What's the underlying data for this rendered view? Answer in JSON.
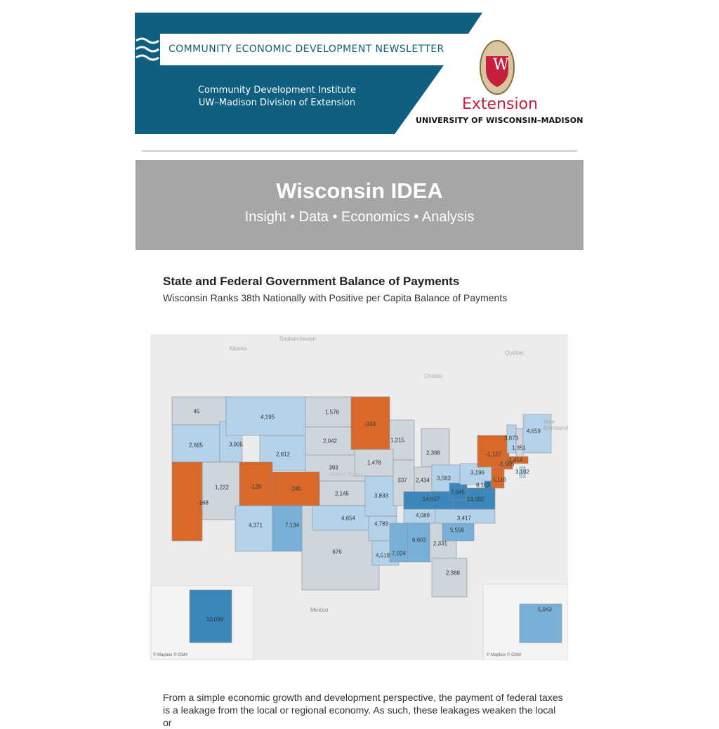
{
  "banner": {
    "newsletter": "COMMUNITY ECONOMIC DEVELOPMENT NEWSLETTER",
    "institute": "Community Development Institute",
    "division": "UW–Madison Division of Extension",
    "extension": "Extension",
    "university": "UNIVERSITY OF WISCONSIN–MADISON",
    "logo_letter": "W",
    "brand_color": "#0e5f80",
    "red": "#c5203e"
  },
  "hero": {
    "title": "Wisconsin IDEA",
    "tagline": "Insight • Data • Economics • Analysis"
  },
  "article": {
    "title": "State and Federal Government Balance of Payments",
    "subtitle": "Wisconsin Ranks 38th Nationally with Positive per Capita Balance of Payments",
    "paragraph": "From a simple economic growth and development perspective, the payment of federal taxes is a leakage from the local or regional economy. As such, these leakages weaken the local or"
  },
  "map": {
    "geo_labels": [
      "Alberta",
      "Saskatchewan",
      "Ontario",
      "Quebec",
      "United States",
      "Mexico",
      "New Brunswick"
    ],
    "attribution": "© Mapbox © OSM",
    "colors": {
      "negative": "#d9692a",
      "low": "#cfd5dd",
      "moderate": "#b4d3ea",
      "high": "#78b0d8",
      "highest": "#3b86bb"
    },
    "values": [
      "45",
      "2,685",
      "3,905",
      "4,195",
      "2,812",
      "1,576",
      "2,042",
      "393",
      "2,145",
      "-240",
      "-129",
      "1,222",
      "-168",
      "4,371",
      "7,134",
      "676",
      "4,654",
      "-333",
      "1,215",
      "1,478",
      "3,833",
      "4,783",
      "4,519",
      "337",
      "2,398",
      "2,434",
      "3,563",
      "14,057",
      "4,089",
      "7,024",
      "6,602",
      "2,331",
      "2,388",
      "5,556",
      "3,417",
      "13,002",
      "7,645",
      "3,196",
      "8,103",
      "-1,127",
      "-1,116",
      "3,873",
      "1,351",
      "4,659",
      "-1,414",
      "-1,595",
      "3,102",
      "10,099",
      "5,943"
    ]
  }
}
